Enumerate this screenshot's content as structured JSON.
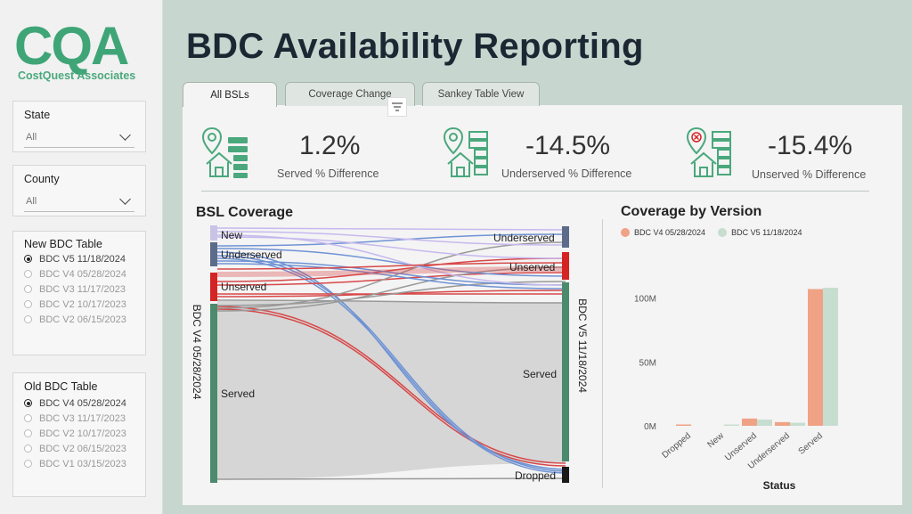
{
  "logo": {
    "mark": "CQA",
    "company": "CostQuest Associates"
  },
  "sidebar": {
    "state": {
      "label": "State",
      "value": "All"
    },
    "county": {
      "label": "County",
      "value": "All"
    },
    "new_table": {
      "label": "New BDC Table",
      "options": [
        "BDC V5 11/18/2024",
        "BDC V4 05/28/2024",
        "BDC V3 11/17/2023",
        "BDC V2 10/17/2023",
        "BDC V2 06/15/2023"
      ],
      "selected": 0
    },
    "old_table": {
      "label": "Old BDC Table",
      "options": [
        "BDC V4 05/28/2024",
        "BDC V3 11/17/2023",
        "BDC V2 10/17/2023",
        "BDC V2 06/15/2023",
        "BDC V1 03/15/2023"
      ],
      "selected": 0
    }
  },
  "page": {
    "title": "BDC Availability Reporting"
  },
  "tabs": [
    "All BSLs",
    "Coverage Change",
    "Sankey Table View"
  ],
  "kpis": [
    {
      "value": "1.2%",
      "label": "Served % Difference",
      "icon": "location-house-building-icon"
    },
    {
      "value": "-14.5%",
      "label": "Underserved % Difference",
      "icon": "location-house-list-icon"
    },
    {
      "value": "-15.4%",
      "label": "Unserved % Difference",
      "icon": "location-x-house-list-icon"
    }
  ],
  "sankey": {
    "title": "BSL Coverage",
    "left_axis": "BDC V4 05/28/2024",
    "right_axis": "BDC V5 11/18/2024",
    "left_nodes": [
      "New",
      "Underserved",
      "Unserved",
      "Served"
    ],
    "right_nodes": [
      "Underserved",
      "Unserved",
      "Served",
      "Dropped"
    ],
    "colors": {
      "new": "#c9c3e6",
      "underserved": "#5d6b8a",
      "unserved": "#d42424",
      "served": "#4c8a6d",
      "dropped": "#1a1a1a"
    }
  },
  "chart_data": {
    "type": "bar",
    "title": "Coverage by Version",
    "xlabel": "Status",
    "ylabel": "",
    "categories": [
      "Dropped",
      "New",
      "Unserved",
      "Underserved",
      "Served"
    ],
    "series": [
      {
        "name": "BDC V4 05/28/2024",
        "color": "#f0a285",
        "values": [
          0.9,
          0,
          5.7,
          2.9,
          107
        ]
      },
      {
        "name": "BDC V5 11/18/2024",
        "color": "#c7ddd0",
        "values": [
          0,
          0.9,
          4.9,
          2.4,
          108
        ]
      }
    ],
    "ylim": [
      0,
      115
    ],
    "yticks": [
      {
        "v": 0,
        "label": "0M"
      },
      {
        "v": 50,
        "label": "50M"
      },
      {
        "v": 100,
        "label": "100M"
      }
    ],
    "legend_position": "top-left",
    "grid": false
  }
}
